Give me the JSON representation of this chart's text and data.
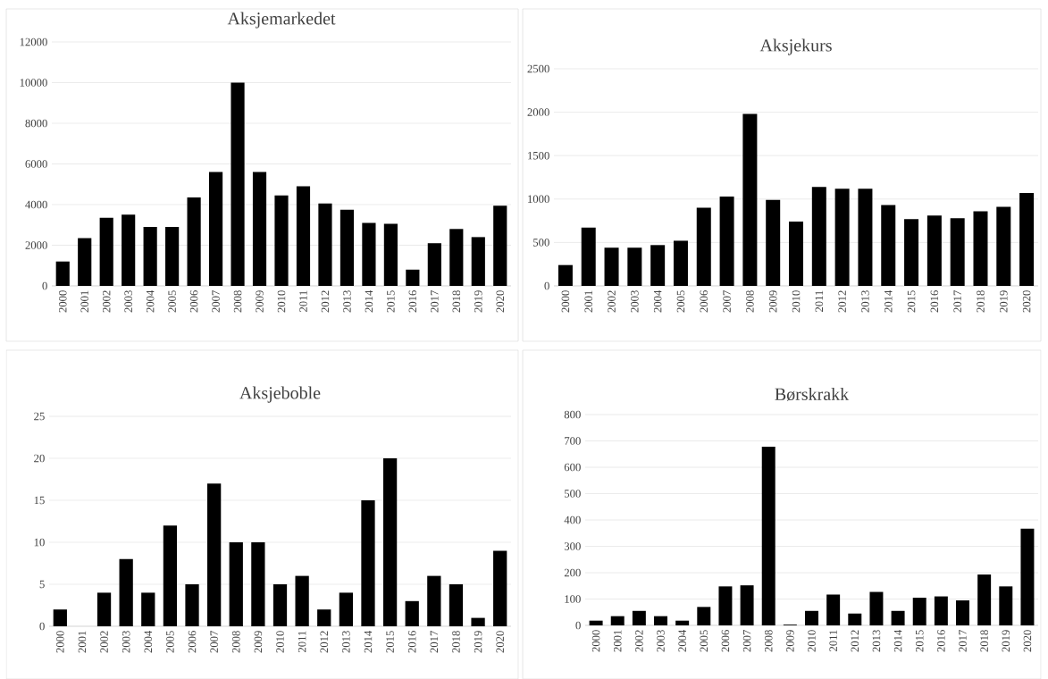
{
  "chart_data": [
    {
      "type": "bar",
      "title": "Aksjemarkedet",
      "categories": [
        "2000",
        "2001",
        "2002",
        "2003",
        "2004",
        "2005",
        "2006",
        "2007",
        "2008",
        "2009",
        "2010",
        "2011",
        "2012",
        "2013",
        "2014",
        "2015",
        "2016",
        "2017",
        "2018",
        "2019",
        "2020"
      ],
      "values": [
        1200,
        2350,
        3350,
        3500,
        2900,
        2900,
        4350,
        5600,
        10000,
        5600,
        4450,
        4900,
        4050,
        3750,
        3100,
        3050,
        800,
        2100,
        2800,
        2400,
        3950
      ],
      "color": "#000000",
      "ylim": [
        0,
        12000
      ],
      "yticks": [
        0,
        2000,
        4000,
        6000,
        8000,
        10000,
        12000
      ],
      "grid": "y"
    },
    {
      "type": "bar",
      "title": "Aksjekurs",
      "categories": [
        "2000",
        "2001",
        "2002",
        "2003",
        "2004",
        "2005",
        "2006",
        "2007",
        "2008",
        "2009",
        "2010",
        "2011",
        "2012",
        "2013",
        "2014",
        "2015",
        "2016",
        "2017",
        "2018",
        "2019",
        "2020"
      ],
      "values": [
        240,
        670,
        440,
        440,
        470,
        520,
        900,
        1030,
        1980,
        990,
        740,
        1140,
        1120,
        1120,
        930,
        770,
        810,
        780,
        860,
        910,
        1070
      ],
      "color": "#000000",
      "ylim": [
        0,
        2500
      ],
      "yticks": [
        0,
        500,
        1000,
        1500,
        2000,
        2500
      ],
      "grid": "y"
    },
    {
      "type": "bar",
      "title": "Aksjeboble",
      "categories": [
        "2000",
        "2001",
        "2002",
        "2003",
        "2004",
        "2005",
        "2006",
        "2007",
        "2008",
        "2009",
        "2010",
        "2011",
        "2012",
        "2013",
        "2014",
        "2015",
        "2016",
        "2017",
        "2018",
        "2019",
        "2020"
      ],
      "values": [
        2,
        0,
        4,
        8,
        4,
        12,
        5,
        17,
        10,
        10,
        5,
        6,
        2,
        4,
        15,
        20,
        3,
        6,
        5,
        1,
        9
      ],
      "color": "#000000",
      "ylim": [
        0,
        25
      ],
      "yticks": [
        0,
        5,
        10,
        15,
        20,
        25
      ],
      "grid": "y"
    },
    {
      "type": "bar",
      "title": "Børskrakk",
      "categories": [
        "2000",
        "2001",
        "2002",
        "2003",
        "2004",
        "2005",
        "2006",
        "2007",
        "2008",
        "2009",
        "2010",
        "2011",
        "2012",
        "2013",
        "2014",
        "2015",
        "2016",
        "2017",
        "2018",
        "2019",
        "2020"
      ],
      "values": [
        18,
        35,
        55,
        35,
        18,
        70,
        148,
        152,
        678,
        3,
        55,
        117,
        45,
        127,
        55,
        105,
        110,
        95,
        193,
        148,
        367
      ],
      "color": "#000000",
      "ylim": [
        0,
        800
      ],
      "yticks": [
        0,
        100,
        200,
        300,
        400,
        500,
        600,
        700,
        800
      ],
      "grid": "y"
    }
  ]
}
